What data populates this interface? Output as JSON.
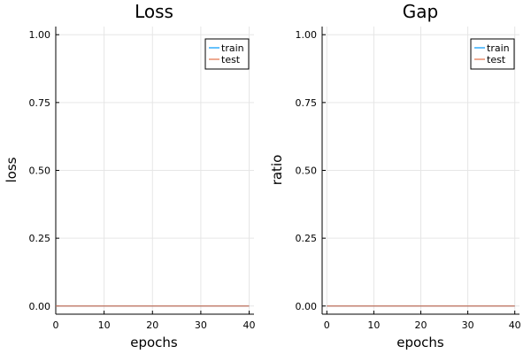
{
  "colors": {
    "train": "#009AFA",
    "test": "#E26F46",
    "grid": "#e6e6e6",
    "axis": "#000000"
  },
  "chart_data": [
    {
      "type": "line",
      "title": "Loss",
      "xlabel": "epochs",
      "ylabel": "loss",
      "xlim": [
        0,
        41
      ],
      "ylim": [
        -0.03,
        1.03
      ],
      "xticks": [
        0,
        10,
        20,
        30,
        40
      ],
      "xticklabels": [
        "0",
        "10",
        "20",
        "30",
        "40"
      ],
      "yticks": [
        0,
        0.25,
        0.5,
        0.75,
        1.0
      ],
      "yticklabels": [
        "0.00",
        "0.25",
        "0.50",
        "0.75",
        "1.00"
      ],
      "grid": true,
      "legend": "top-right",
      "series": [
        {
          "name": "train",
          "x": [
            0,
            40
          ],
          "y": [
            0,
            0
          ]
        },
        {
          "name": "test",
          "x": [
            0,
            40
          ],
          "y": [
            0,
            0
          ]
        }
      ]
    },
    {
      "type": "line",
      "title": "Gap",
      "xlabel": "epochs",
      "ylabel": "ratio",
      "xlim": [
        -1,
        41
      ],
      "ylim": [
        -0.03,
        1.03
      ],
      "xticks": [
        0,
        10,
        20,
        30,
        40
      ],
      "xticklabels": [
        "0",
        "10",
        "20",
        "30",
        "40"
      ],
      "yticks": [
        0,
        0.25,
        0.5,
        0.75,
        1.0
      ],
      "yticklabels": [
        "0.00",
        "0.25",
        "0.50",
        "0.75",
        "1.00"
      ],
      "grid": true,
      "legend": "top-right",
      "series": [
        {
          "name": "train",
          "x": [
            0,
            40
          ],
          "y": [
            0,
            0
          ]
        },
        {
          "name": "test",
          "x": [
            0,
            40
          ],
          "y": [
            0,
            0
          ]
        }
      ]
    }
  ]
}
